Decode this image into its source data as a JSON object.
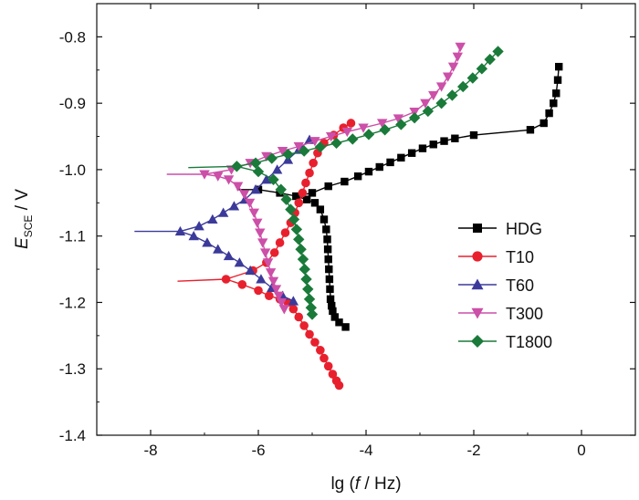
{
  "chart_data": {
    "type": "line",
    "xlabel_parts": [
      "lg (",
      "f",
      " / Hz)"
    ],
    "ylabel_parts": [
      "E",
      "SCE",
      " / V"
    ],
    "xlim": [
      -9.0,
      1.0
    ],
    "ylim": [
      -1.4,
      -0.75
    ],
    "xticks": [
      -8,
      -6,
      -4,
      -2,
      0
    ],
    "xtick_labels": [
      "-8",
      "-6",
      "-4",
      "-2",
      "0"
    ],
    "yticks": [
      -1.4,
      -1.3,
      -1.2,
      -1.1,
      -1.0,
      -0.9,
      -0.8
    ],
    "ytick_labels": [
      "-1.4",
      "-1.3",
      "-1.2",
      "-1.1",
      "-1.0",
      "-0.9",
      "-0.8"
    ],
    "grid": false,
    "legend_position": "right",
    "series": [
      {
        "name": "HDG",
        "color": "#000000",
        "marker": "square",
        "x": [
          -6.4,
          -6.0,
          -5.6,
          -5.3,
          -5.1,
          -4.95,
          -4.85,
          -4.78,
          -4.74,
          -4.72,
          -4.71,
          -4.7,
          -4.69,
          -4.68,
          -4.67,
          -4.66,
          -4.64,
          -4.62,
          -4.58,
          -4.5,
          -4.38
        ],
        "y": [
          -1.03,
          -1.03,
          -1.035,
          -1.04,
          -1.045,
          -1.05,
          -1.06,
          -1.075,
          -1.09,
          -1.105,
          -1.12,
          -1.135,
          -1.15,
          -1.165,
          -1.18,
          -1.195,
          -1.205,
          -1.213,
          -1.222,
          -1.23,
          -1.237
        ],
        "x2": [
          -5.3,
          -5.0,
          -4.7,
          -4.4,
          -4.15,
          -3.95,
          -3.75,
          -3.55,
          -3.35,
          -3.15,
          -2.95,
          -2.75,
          -2.55,
          -2.35,
          -2.0,
          -0.95,
          -0.7,
          -0.6,
          -0.52,
          -0.47,
          -0.44,
          -0.42
        ],
        "y2": [
          -1.04,
          -1.035,
          -1.025,
          -1.018,
          -1.01,
          -1.003,
          -0.996,
          -0.989,
          -0.982,
          -0.975,
          -0.968,
          -0.962,
          -0.957,
          -0.953,
          -0.948,
          -0.94,
          -0.93,
          -0.915,
          -0.9,
          -0.885,
          -0.865,
          -0.845
        ]
      },
      {
        "name": "T10",
        "color": "#e8202e",
        "marker": "circle",
        "x": [
          -7.5,
          -6.6,
          -6.3,
          -6.0,
          -5.8,
          -5.6,
          -5.45,
          -5.35,
          -5.25,
          -5.15,
          -5.05,
          -4.95,
          -4.85,
          -4.78,
          -4.7,
          -4.62,
          -4.55,
          -4.5
        ],
        "y": [
          -1.168,
          -1.165,
          -1.173,
          -1.182,
          -1.19,
          -1.195,
          -1.2,
          -1.21,
          -1.222,
          -1.235,
          -1.248,
          -1.26,
          -1.272,
          -1.284,
          -1.296,
          -1.308,
          -1.318,
          -1.325
        ],
        "x2": [
          -6.6,
          -6.1,
          -5.85,
          -5.7,
          -5.6,
          -5.5,
          -5.4,
          -5.32,
          -5.25,
          -5.18,
          -5.12,
          -5.05,
          -4.98,
          -4.9,
          -4.78,
          -4.6,
          -4.42,
          -4.28
        ],
        "y2": [
          -1.165,
          -1.152,
          -1.14,
          -1.125,
          -1.11,
          -1.095,
          -1.08,
          -1.065,
          -1.05,
          -1.035,
          -1.02,
          -1.005,
          -0.99,
          -0.975,
          -0.96,
          -0.948,
          -0.937,
          -0.93
        ]
      },
      {
        "name": "T60",
        "color": "#3b3a9a",
        "marker": "triangle-up",
        "x": [
          -8.3,
          -7.45,
          -7.2,
          -6.95,
          -6.75,
          -6.55,
          -6.35,
          -6.15,
          -5.95,
          -5.75,
          -5.55,
          -5.35
        ],
        "y": [
          -1.093,
          -1.093,
          -1.1,
          -1.11,
          -1.12,
          -1.13,
          -1.14,
          -1.152,
          -1.165,
          -1.178,
          -1.19,
          -1.198
        ],
        "x2": [
          -7.45,
          -7.1,
          -6.85,
          -6.65,
          -6.45,
          -6.25,
          -6.05,
          -5.85,
          -5.65,
          -5.45,
          -5.25,
          -5.05
        ],
        "y2": [
          -1.093,
          -1.085,
          -1.075,
          -1.065,
          -1.055,
          -1.045,
          -1.03,
          -1.015,
          -1.0,
          -0.985,
          -0.97,
          -0.955
        ]
      },
      {
        "name": "T300",
        "color": "#cc4fa8",
        "marker": "triangle-down",
        "x": [
          -7.7,
          -7.0,
          -6.75,
          -6.55,
          -6.38,
          -6.26,
          -6.16,
          -6.08,
          -6.02,
          -5.97,
          -5.92,
          -5.87,
          -5.82,
          -5.77,
          -5.72,
          -5.67,
          -5.62,
          -5.57,
          -5.52
        ],
        "y": [
          -1.007,
          -1.007,
          -1.01,
          -1.015,
          -1.025,
          -1.037,
          -1.05,
          -1.065,
          -1.08,
          -1.095,
          -1.11,
          -1.125,
          -1.14,
          -1.155,
          -1.168,
          -1.18,
          -1.19,
          -1.2,
          -1.21
        ],
        "x2": [
          -7.0,
          -6.5,
          -6.15,
          -5.85,
          -5.55,
          -5.25,
          -4.95,
          -4.65,
          -4.35,
          -4.05,
          -3.7,
          -3.4,
          -3.1,
          -2.9,
          -2.75,
          -2.6,
          -2.48,
          -2.38,
          -2.3,
          -2.25
        ],
        "y2": [
          -1.007,
          -1.0,
          -0.99,
          -0.98,
          -0.972,
          -0.965,
          -0.957,
          -0.95,
          -0.943,
          -0.937,
          -0.93,
          -0.923,
          -0.913,
          -0.9,
          -0.888,
          -0.875,
          -0.86,
          -0.845,
          -0.83,
          -0.815
        ]
      },
      {
        "name": "T1800",
        "color": "#1a7a3a",
        "marker": "diamond",
        "x": [
          -7.3,
          -6.4,
          -6.0,
          -5.72,
          -5.58,
          -5.48,
          -5.4,
          -5.34,
          -5.29,
          -5.25,
          -5.21,
          -5.17,
          -5.14,
          -5.11,
          -5.08,
          -5.05,
          -5.02,
          -5.0
        ],
        "y": [
          -0.997,
          -0.995,
          -1.003,
          -1.015,
          -1.03,
          -1.045,
          -1.06,
          -1.075,
          -1.09,
          -1.105,
          -1.12,
          -1.135,
          -1.15,
          -1.165,
          -1.18,
          -1.195,
          -1.208,
          -1.218
        ],
        "x2": [
          -6.4,
          -6.05,
          -5.75,
          -5.45,
          -5.15,
          -4.85,
          -4.55,
          -4.25,
          -3.95,
          -3.65,
          -3.35,
          -3.1,
          -2.85,
          -2.6,
          -2.4,
          -2.2,
          -2.02,
          -1.85,
          -1.7,
          -1.55
        ],
        "y2": [
          -0.995,
          -0.99,
          -0.983,
          -0.977,
          -0.972,
          -0.966,
          -0.96,
          -0.954,
          -0.947,
          -0.94,
          -0.932,
          -0.922,
          -0.912,
          -0.9,
          -0.888,
          -0.875,
          -0.862,
          -0.848,
          -0.834,
          -0.822
        ]
      }
    ]
  }
}
